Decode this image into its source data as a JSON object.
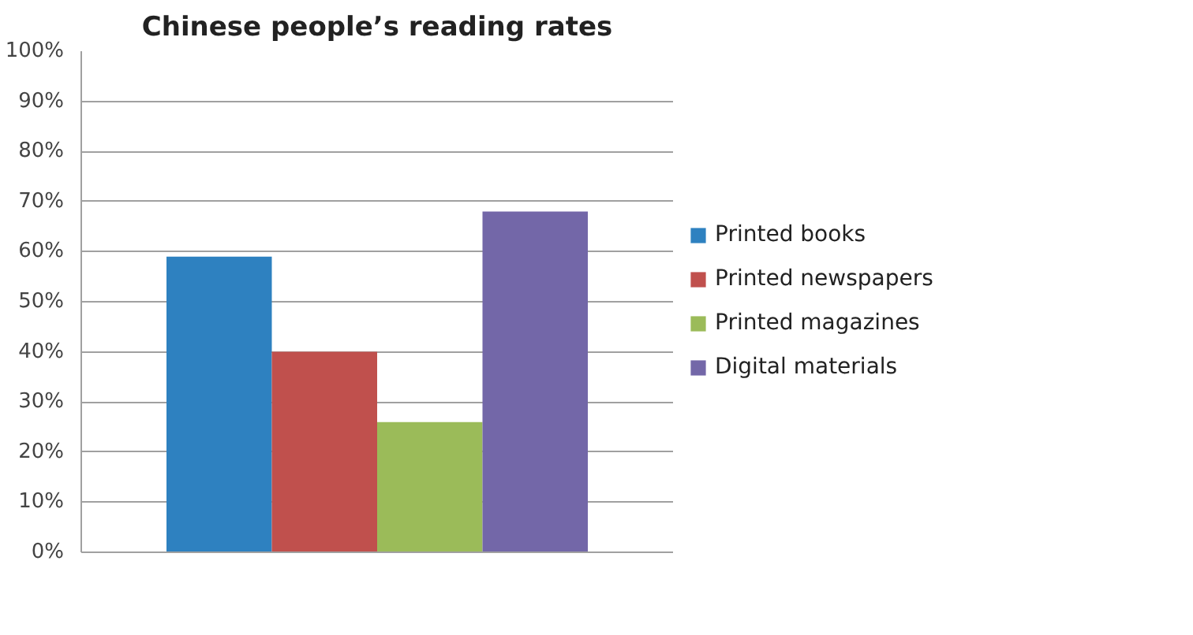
{
  "chart_data": {
    "type": "bar",
    "title": "Chinese people’s reading rates",
    "categories": [
      null
    ],
    "series": [
      {
        "name": "Printed books",
        "color": "#2e81c0",
        "values": [
          59
        ]
      },
      {
        "name": "Printed newspapers",
        "color": "#c0504d",
        "values": [
          40
        ]
      },
      {
        "name": "Printed magazines",
        "color": "#9bbb59",
        "values": [
          26
        ]
      },
      {
        "name": "Digital materials",
        "color": "#7367a8",
        "values": [
          68
        ]
      }
    ],
    "ylim": [
      0,
      100
    ],
    "yticks": [
      {
        "value": 0,
        "label": "0%"
      },
      {
        "value": 10,
        "label": "10%"
      },
      {
        "value": 20,
        "label": "20%"
      },
      {
        "value": 30,
        "label": "30%"
      },
      {
        "value": 40,
        "label": "40%"
      },
      {
        "value": 50,
        "label": "50%"
      },
      {
        "value": 60,
        "label": "60%"
      },
      {
        "value": 70,
        "label": "70%"
      },
      {
        "value": 80,
        "label": "80%"
      },
      {
        "value": 90,
        "label": "90%"
      },
      {
        "value": 100,
        "label": "100%"
      }
    ],
    "grid": "y",
    "legend": "right"
  }
}
